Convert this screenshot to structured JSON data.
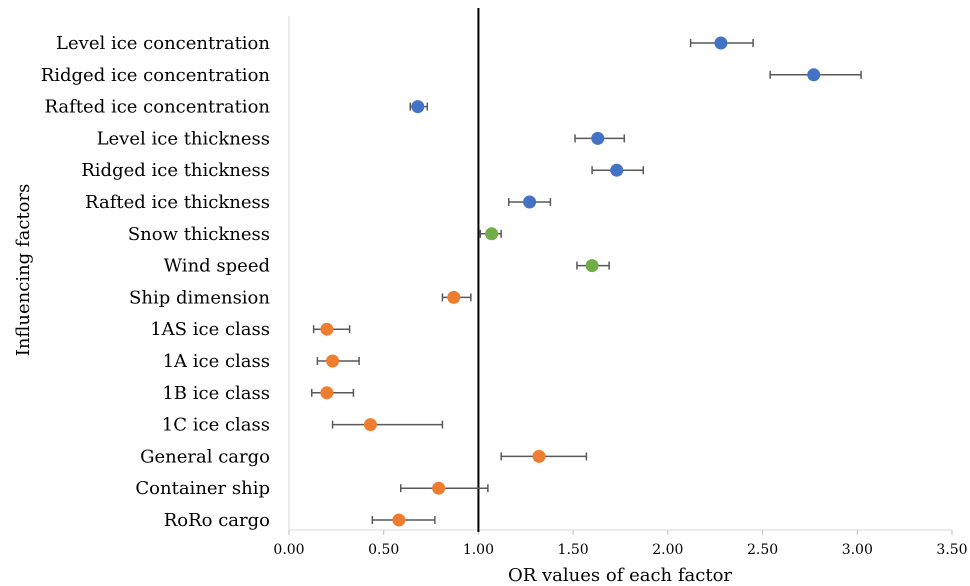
{
  "chart_data": {
    "type": "scatter",
    "xlabel": "OR values of each factor",
    "ylabel": "Influencing factors",
    "xlim": [
      0,
      3.5
    ],
    "xticks": [
      "0.00",
      "0.50",
      "1.00",
      "1.50",
      "2.00",
      "2.50",
      "3.00",
      "3.50"
    ],
    "xtick_values": [
      0,
      0.5,
      1.0,
      1.5,
      2.0,
      2.5,
      3.0,
      3.5
    ],
    "reference_line": 1.0,
    "grid": false,
    "categories": [
      "Level ice concentration",
      "Ridged ice concentration",
      "Rafted ice concentration",
      "Level ice thickness",
      "Ridged ice thickness",
      "Rafted ice thickness",
      "Snow thickness",
      "Wind speed",
      "Ship dimension",
      "1AS ice class",
      "1A ice class",
      "1B ice class",
      "1C ice class",
      "General cargo",
      "Container ship",
      "RoRo cargo"
    ],
    "points": [
      {
        "value": 2.28,
        "low": 2.12,
        "high": 2.45,
        "color": "#4472c4"
      },
      {
        "value": 2.77,
        "low": 2.54,
        "high": 3.02,
        "color": "#4472c4"
      },
      {
        "value": 0.68,
        "low": 0.64,
        "high": 0.73,
        "color": "#4472c4"
      },
      {
        "value": 1.63,
        "low": 1.51,
        "high": 1.77,
        "color": "#4472c4"
      },
      {
        "value": 1.73,
        "low": 1.6,
        "high": 1.87,
        "color": "#4472c4"
      },
      {
        "value": 1.27,
        "low": 1.16,
        "high": 1.38,
        "color": "#4472c4"
      },
      {
        "value": 1.07,
        "low": 1.01,
        "high": 1.12,
        "color": "#70ad47"
      },
      {
        "value": 1.6,
        "low": 1.52,
        "high": 1.69,
        "color": "#70ad47"
      },
      {
        "value": 0.87,
        "low": 0.81,
        "high": 0.96,
        "color": "#ed7d31"
      },
      {
        "value": 0.2,
        "low": 0.13,
        "high": 0.32,
        "color": "#ed7d31"
      },
      {
        "value": 0.23,
        "low": 0.15,
        "high": 0.37,
        "color": "#ed7d31"
      },
      {
        "value": 0.2,
        "low": 0.12,
        "high": 0.34,
        "color": "#ed7d31"
      },
      {
        "value": 0.43,
        "low": 0.23,
        "high": 0.81,
        "color": "#ed7d31"
      },
      {
        "value": 1.32,
        "low": 1.12,
        "high": 1.57,
        "color": "#ed7d31"
      },
      {
        "value": 0.79,
        "low": 0.59,
        "high": 1.05,
        "color": "#ed7d31"
      },
      {
        "value": 0.58,
        "low": 0.44,
        "high": 0.77,
        "color": "#ed7d31"
      }
    ]
  }
}
